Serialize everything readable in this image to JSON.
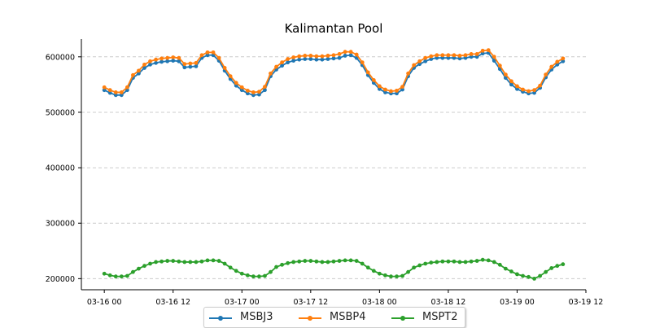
{
  "chart_data": {
    "type": "line",
    "title": "Kalimantan Pool",
    "xlabel": "",
    "ylabel": "",
    "x_tick_labels": [
      "03-16 00",
      "03-16 12",
      "03-17 00",
      "03-17 12",
      "03-18 00",
      "03-18 12",
      "03-19 00",
      "03-19 12"
    ],
    "y_tick_labels": [
      "200000",
      "300000",
      "400000",
      "500000",
      "600000"
    ],
    "y_ticks": [
      200000,
      300000,
      400000,
      500000,
      600000
    ],
    "xlim_hours": [
      -4,
      84
    ],
    "ylim": [
      180000,
      632000
    ],
    "grid": "horizontal dashed",
    "legend_position": "bottom-center",
    "x_start_hour": 0,
    "x_step_hours": 1,
    "series": [
      {
        "name": "MSBJ3",
        "color": "#1f77b4",
        "values": [
          540000,
          535000,
          531000,
          531000,
          540000,
          562000,
          570000,
          580000,
          586000,
          589000,
          591000,
          592000,
          593000,
          592000,
          581000,
          582000,
          583000,
          598000,
          603000,
          603000,
          593000,
          575000,
          560000,
          548000,
          540000,
          534000,
          531000,
          532000,
          540000,
          565000,
          577000,
          584000,
          590000,
          593000,
          595000,
          596000,
          596000,
          595000,
          595000,
          596000,
          597000,
          598000,
          602000,
          603000,
          598000,
          585000,
          567000,
          553000,
          542000,
          536000,
          534000,
          534000,
          541000,
          565000,
          580000,
          587000,
          592000,
          596000,
          598000,
          598000,
          598000,
          598000,
          597000,
          598000,
          600000,
          600000,
          606000,
          607000,
          593000,
          578000,
          562000,
          550000,
          542000,
          537000,
          534000,
          535000,
          544000,
          563000,
          577000,
          586000,
          592000
        ]
      },
      {
        "name": "MSBP4",
        "color": "#ff7f0e",
        "values": [
          545000,
          540000,
          536000,
          536000,
          545000,
          567000,
          575000,
          586000,
          592000,
          595000,
          597000,
          598000,
          599000,
          598000,
          587000,
          588000,
          589000,
          603000,
          608000,
          608000,
          598000,
          580000,
          565000,
          553000,
          545000,
          539000,
          536000,
          537000,
          546000,
          570000,
          582000,
          590000,
          596000,
          599000,
          601000,
          602000,
          602000,
          601000,
          601000,
          602000,
          603000,
          605000,
          609000,
          609000,
          604000,
          590000,
          572000,
          558000,
          547000,
          541000,
          538000,
          539000,
          546000,
          570000,
          585000,
          592000,
          598000,
          601000,
          603000,
          603000,
          603000,
          603000,
          602000,
          603000,
          605000,
          605000,
          611000,
          612000,
          600000,
          584000,
          568000,
          556000,
          547000,
          541000,
          538000,
          540000,
          548000,
          568000,
          582000,
          591000,
          597000
        ]
      },
      {
        "name": "MSPT2",
        "color": "#2ca02c",
        "values": [
          209000,
          206000,
          204000,
          204000,
          205000,
          212000,
          218000,
          223000,
          227000,
          230000,
          231000,
          232000,
          232000,
          231000,
          230000,
          230000,
          230000,
          231000,
          233000,
          233000,
          232000,
          227000,
          220000,
          214000,
          209000,
          206000,
          204000,
          204000,
          205000,
          212000,
          221000,
          225000,
          228000,
          230000,
          231000,
          232000,
          232000,
          231000,
          230000,
          230000,
          231000,
          232000,
          233000,
          233000,
          232000,
          227000,
          220000,
          214000,
          209000,
          206000,
          204000,
          204000,
          205000,
          212000,
          220000,
          224000,
          227000,
          229000,
          230000,
          231000,
          231000,
          231000,
          230000,
          230000,
          231000,
          232000,
          234000,
          233000,
          230000,
          225000,
          218000,
          213000,
          208000,
          205000,
          203000,
          200000,
          205000,
          212000,
          219000,
          223000,
          226000
        ]
      }
    ]
  }
}
